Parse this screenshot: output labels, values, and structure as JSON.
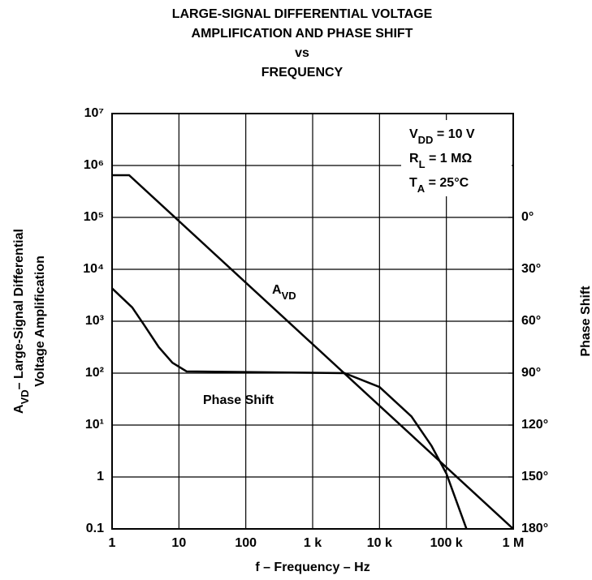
{
  "chart_data": {
    "type": "line",
    "title": [
      "LARGE-SIGNAL DIFFERENTIAL VOLTAGE",
      "AMPLIFICATION AND PHASE SHIFT",
      "vs",
      "FREQUENCY"
    ],
    "xlabel": "f – Frequency – Hz",
    "ylabel": [
      [
        "A",
        "VD",
        "– Large-Signal Differential"
      ],
      [
        "Voltage Amplification"
      ]
    ],
    "y2label": "Phase Shift",
    "xscale": "log",
    "yscale": "log",
    "grid": true,
    "xlim": [
      1,
      1000000
    ],
    "ylim": [
      0.1,
      10000000
    ],
    "y2lim": [
      180,
      -60
    ],
    "xticks": [
      1,
      10,
      100,
      {
        "value": 1000,
        "label": "1 k"
      },
      {
        "value": 10000,
        "label": "10 k"
      },
      {
        "value": 100000,
        "label": "100 k"
      },
      {
        "value": 1000000,
        "label": "1 M"
      }
    ],
    "yticks": [
      0.1,
      1,
      {
        "value": 10,
        "label": "10¹"
      },
      {
        "value": 100,
        "label": "10²"
      },
      {
        "value": 1000,
        "label": "10³"
      },
      {
        "value": 10000,
        "label": "10⁴"
      },
      {
        "value": 100000,
        "label": "10⁵"
      },
      {
        "value": 1000000,
        "label": "10⁶"
      },
      {
        "value": 10000000,
        "label": "10⁷"
      }
    ],
    "y2ticks": [
      {
        "value": 0,
        "label": "0°"
      },
      {
        "value": 30,
        "label": "30°"
      },
      {
        "value": 60,
        "label": "60°"
      },
      {
        "value": 90,
        "label": "90°"
      },
      {
        "value": 120,
        "label": "120°"
      },
      {
        "value": 150,
        "label": "150°"
      },
      {
        "value": 180,
        "label": "180°"
      }
    ],
    "series": [
      {
        "label": [
          "A",
          "VD"
        ],
        "color": "#000000",
        "x": [
          1,
          1.8,
          1000000
        ],
        "values": [
          650000,
          650000,
          0.1
        ]
      },
      {
        "label": [
          "Phase Shift"
        ],
        "color": "#000000",
        "axis": "y2",
        "x": [
          1,
          2,
          3,
          5,
          8,
          13,
          3000,
          10000,
          30000,
          60000,
          100000,
          200000
        ],
        "values": [
          41,
          52,
          62,
          75,
          84,
          89,
          90,
          98,
          115,
          132,
          148,
          180
        ]
      }
    ],
    "annotations": [
      [
        "V",
        "DD",
        " = 10 V"
      ],
      [
        "R",
        "L",
        " = 1 MΩ"
      ],
      [
        "T",
        "A",
        " = 25°C"
      ]
    ]
  }
}
